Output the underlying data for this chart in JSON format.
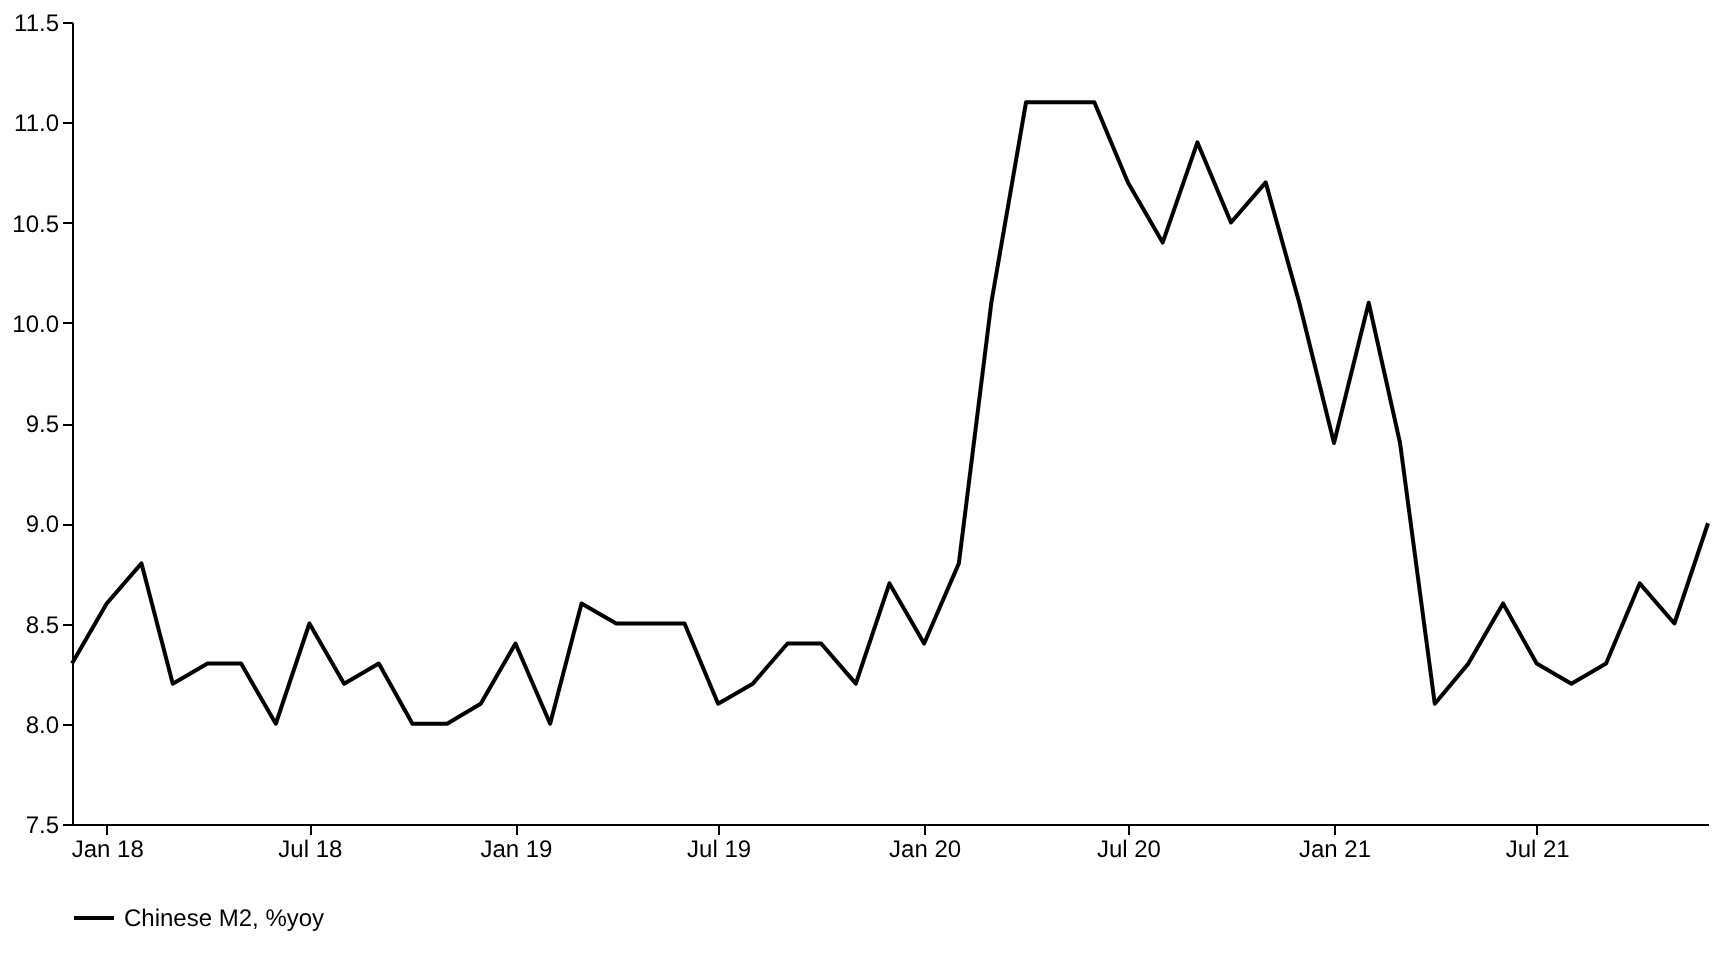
{
  "chart_data": {
    "type": "line",
    "x": [
      "2017-12",
      "2018-01",
      "2018-02",
      "2018-03",
      "2018-04",
      "2018-05",
      "2018-06",
      "2018-07",
      "2018-08",
      "2018-09",
      "2018-10",
      "2018-11",
      "2018-12",
      "2019-01",
      "2019-02",
      "2019-03",
      "2019-04",
      "2019-05",
      "2019-06",
      "2019-07",
      "2019-08",
      "2019-09",
      "2019-10",
      "2019-11",
      "2019-12",
      "2020-01",
      "2020-02",
      "2020-03",
      "2020-04",
      "2020-05",
      "2020-06",
      "2020-07",
      "2020-08",
      "2020-09",
      "2020-10",
      "2020-11",
      "2020-12",
      "2021-01",
      "2021-02",
      "2021-03",
      "2021-04",
      "2021-05",
      "2021-06",
      "2021-07",
      "2021-08",
      "2021-09",
      "2021-10",
      "2021-11",
      "2021-12"
    ],
    "series": [
      {
        "name": "Chinese M2, %yoy",
        "color": "#000000",
        "values": [
          8.3,
          8.6,
          8.8,
          8.2,
          8.3,
          8.3,
          8.0,
          8.5,
          8.2,
          8.3,
          8.0,
          8.0,
          8.1,
          8.4,
          8.0,
          8.6,
          8.5,
          8.5,
          8.5,
          8.1,
          8.2,
          8.4,
          8.4,
          8.2,
          8.7,
          8.4,
          8.8,
          10.1,
          11.1,
          11.1,
          11.1,
          10.7,
          10.4,
          10.9,
          10.5,
          10.7,
          10.1,
          9.4,
          10.1,
          9.4,
          8.1,
          8.3,
          8.6,
          8.3,
          8.2,
          8.3,
          8.7,
          8.5,
          9.0
        ]
      }
    ],
    "xlim": [
      "2017-12",
      "2021-12"
    ],
    "xticks": [
      {
        "value": "2018-01",
        "label": "Jan 18"
      },
      {
        "value": "2018-07",
        "label": "Jul 18"
      },
      {
        "value": "2019-01",
        "label": "Jan 19"
      },
      {
        "value": "2019-07",
        "label": "Jul 19"
      },
      {
        "value": "2020-01",
        "label": "Jan 20"
      },
      {
        "value": "2020-07",
        "label": "Jul 20"
      },
      {
        "value": "2021-01",
        "label": "Jan 21"
      },
      {
        "value": "2021-07",
        "label": "Jul 21"
      }
    ],
    "ylim": [
      7.5,
      11.5
    ],
    "yticks": [
      {
        "value": 7.5,
        "label": "7.5"
      },
      {
        "value": 8,
        "label": "8.0"
      },
      {
        "value": 8.5,
        "label": "8.5"
      },
      {
        "value": 9,
        "label": "9.0"
      },
      {
        "value": 9.5,
        "label": "9.5"
      },
      {
        "value": 10,
        "label": "10.0"
      },
      {
        "value": 10.5,
        "label": "10.5"
      },
      {
        "value": 11,
        "label": "11.0"
      },
      {
        "value": 11.5,
        "label": "11.5"
      }
    ],
    "grid": false,
    "legend": "bottom",
    "marker": "none",
    "line_style": "solid"
  }
}
